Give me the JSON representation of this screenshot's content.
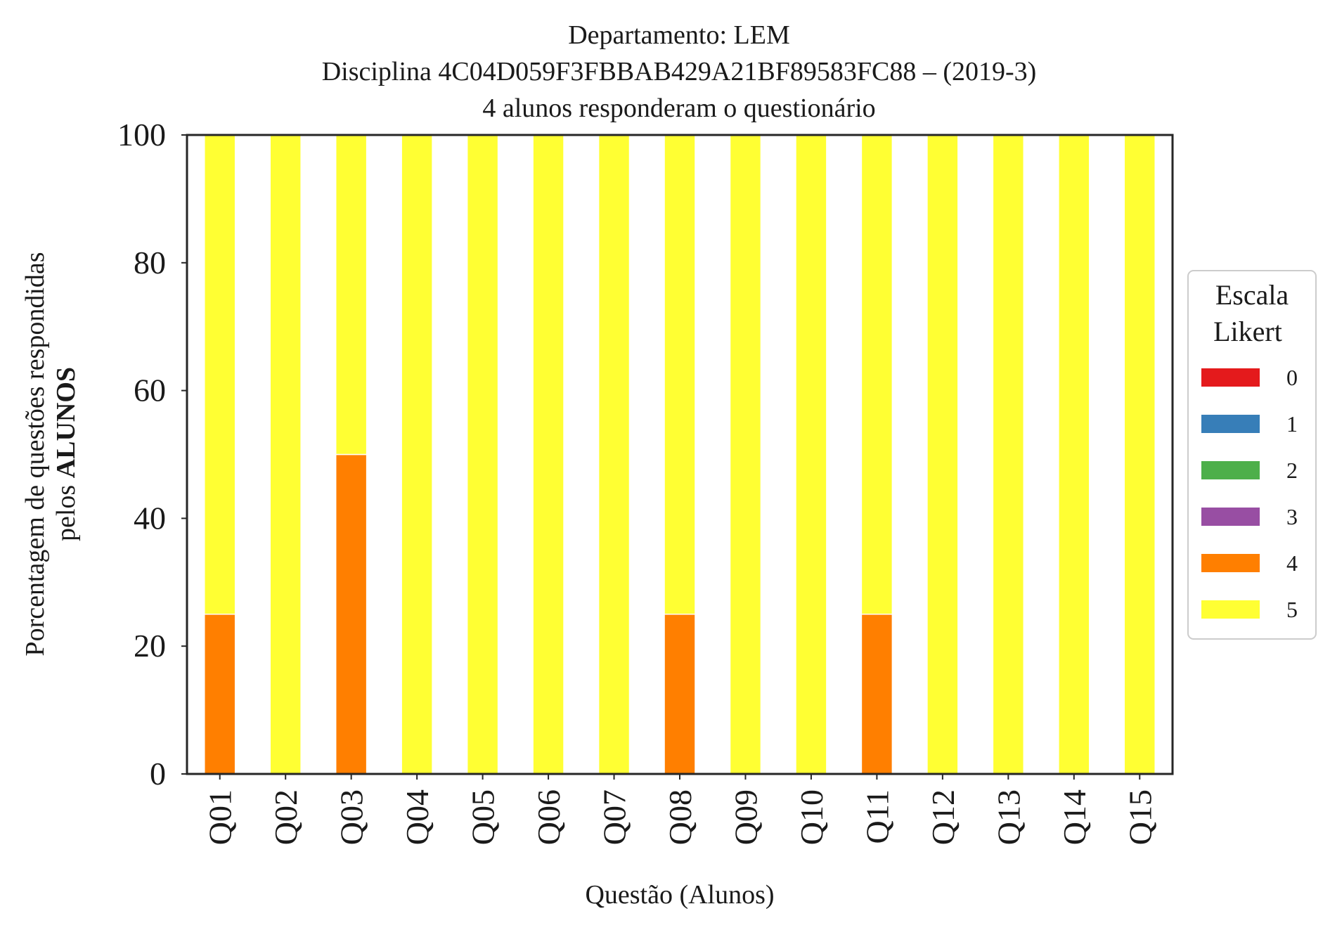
{
  "chart_data": {
    "type": "bar",
    "stacked": true,
    "title_lines": [
      "Departamento: LEM",
      "Disciplina 4C04D059F3FBBAB429A21BF89583FC88 – (2019-3)",
      "4 alunos responderam o questionário"
    ],
    "xlabel": "Questão (Alunos)",
    "ylabel_line1": "Porcentagem de questões respondidas",
    "ylabel_line2_prefix": "pelos ",
    "ylabel_line2_bold": "ALUNOS",
    "ylim": [
      0,
      100
    ],
    "yticks": [
      "0",
      "20",
      "40",
      "60",
      "80",
      "100"
    ],
    "grid": false,
    "legend_position": "center-right",
    "legend_title_lines": [
      "Escala",
      "Likert"
    ],
    "categories": [
      "Q01",
      "Q02",
      "Q03",
      "Q04",
      "Q05",
      "Q06",
      "Q07",
      "Q08",
      "Q09",
      "Q10",
      "Q11",
      "Q12",
      "Q13",
      "Q14",
      "Q15"
    ],
    "series": [
      {
        "name": "0",
        "color": "#e41a1c",
        "values": [
          0,
          0,
          0,
          0,
          0,
          0,
          0,
          0,
          0,
          0,
          0,
          0,
          0,
          0,
          0
        ]
      },
      {
        "name": "1",
        "color": "#377eb8",
        "values": [
          0,
          0,
          0,
          0,
          0,
          0,
          0,
          0,
          0,
          0,
          0,
          0,
          0,
          0,
          0
        ]
      },
      {
        "name": "2",
        "color": "#4daf4a",
        "values": [
          0,
          0,
          0,
          0,
          0,
          0,
          0,
          0,
          0,
          0,
          0,
          0,
          0,
          0,
          0
        ]
      },
      {
        "name": "3",
        "color": "#984ea3",
        "values": [
          0,
          0,
          0,
          0,
          0,
          0,
          0,
          0,
          0,
          0,
          0,
          0,
          0,
          0,
          0
        ]
      },
      {
        "name": "4",
        "color": "#ff7f00",
        "values": [
          25,
          0,
          50,
          0,
          0,
          0,
          0,
          25,
          0,
          0,
          25,
          0,
          0,
          0,
          0
        ]
      },
      {
        "name": "5",
        "color": "#ffff33",
        "values": [
          75,
          100,
          50,
          100,
          100,
          100,
          100,
          75,
          100,
          100,
          75,
          100,
          100,
          100,
          100
        ]
      }
    ]
  }
}
